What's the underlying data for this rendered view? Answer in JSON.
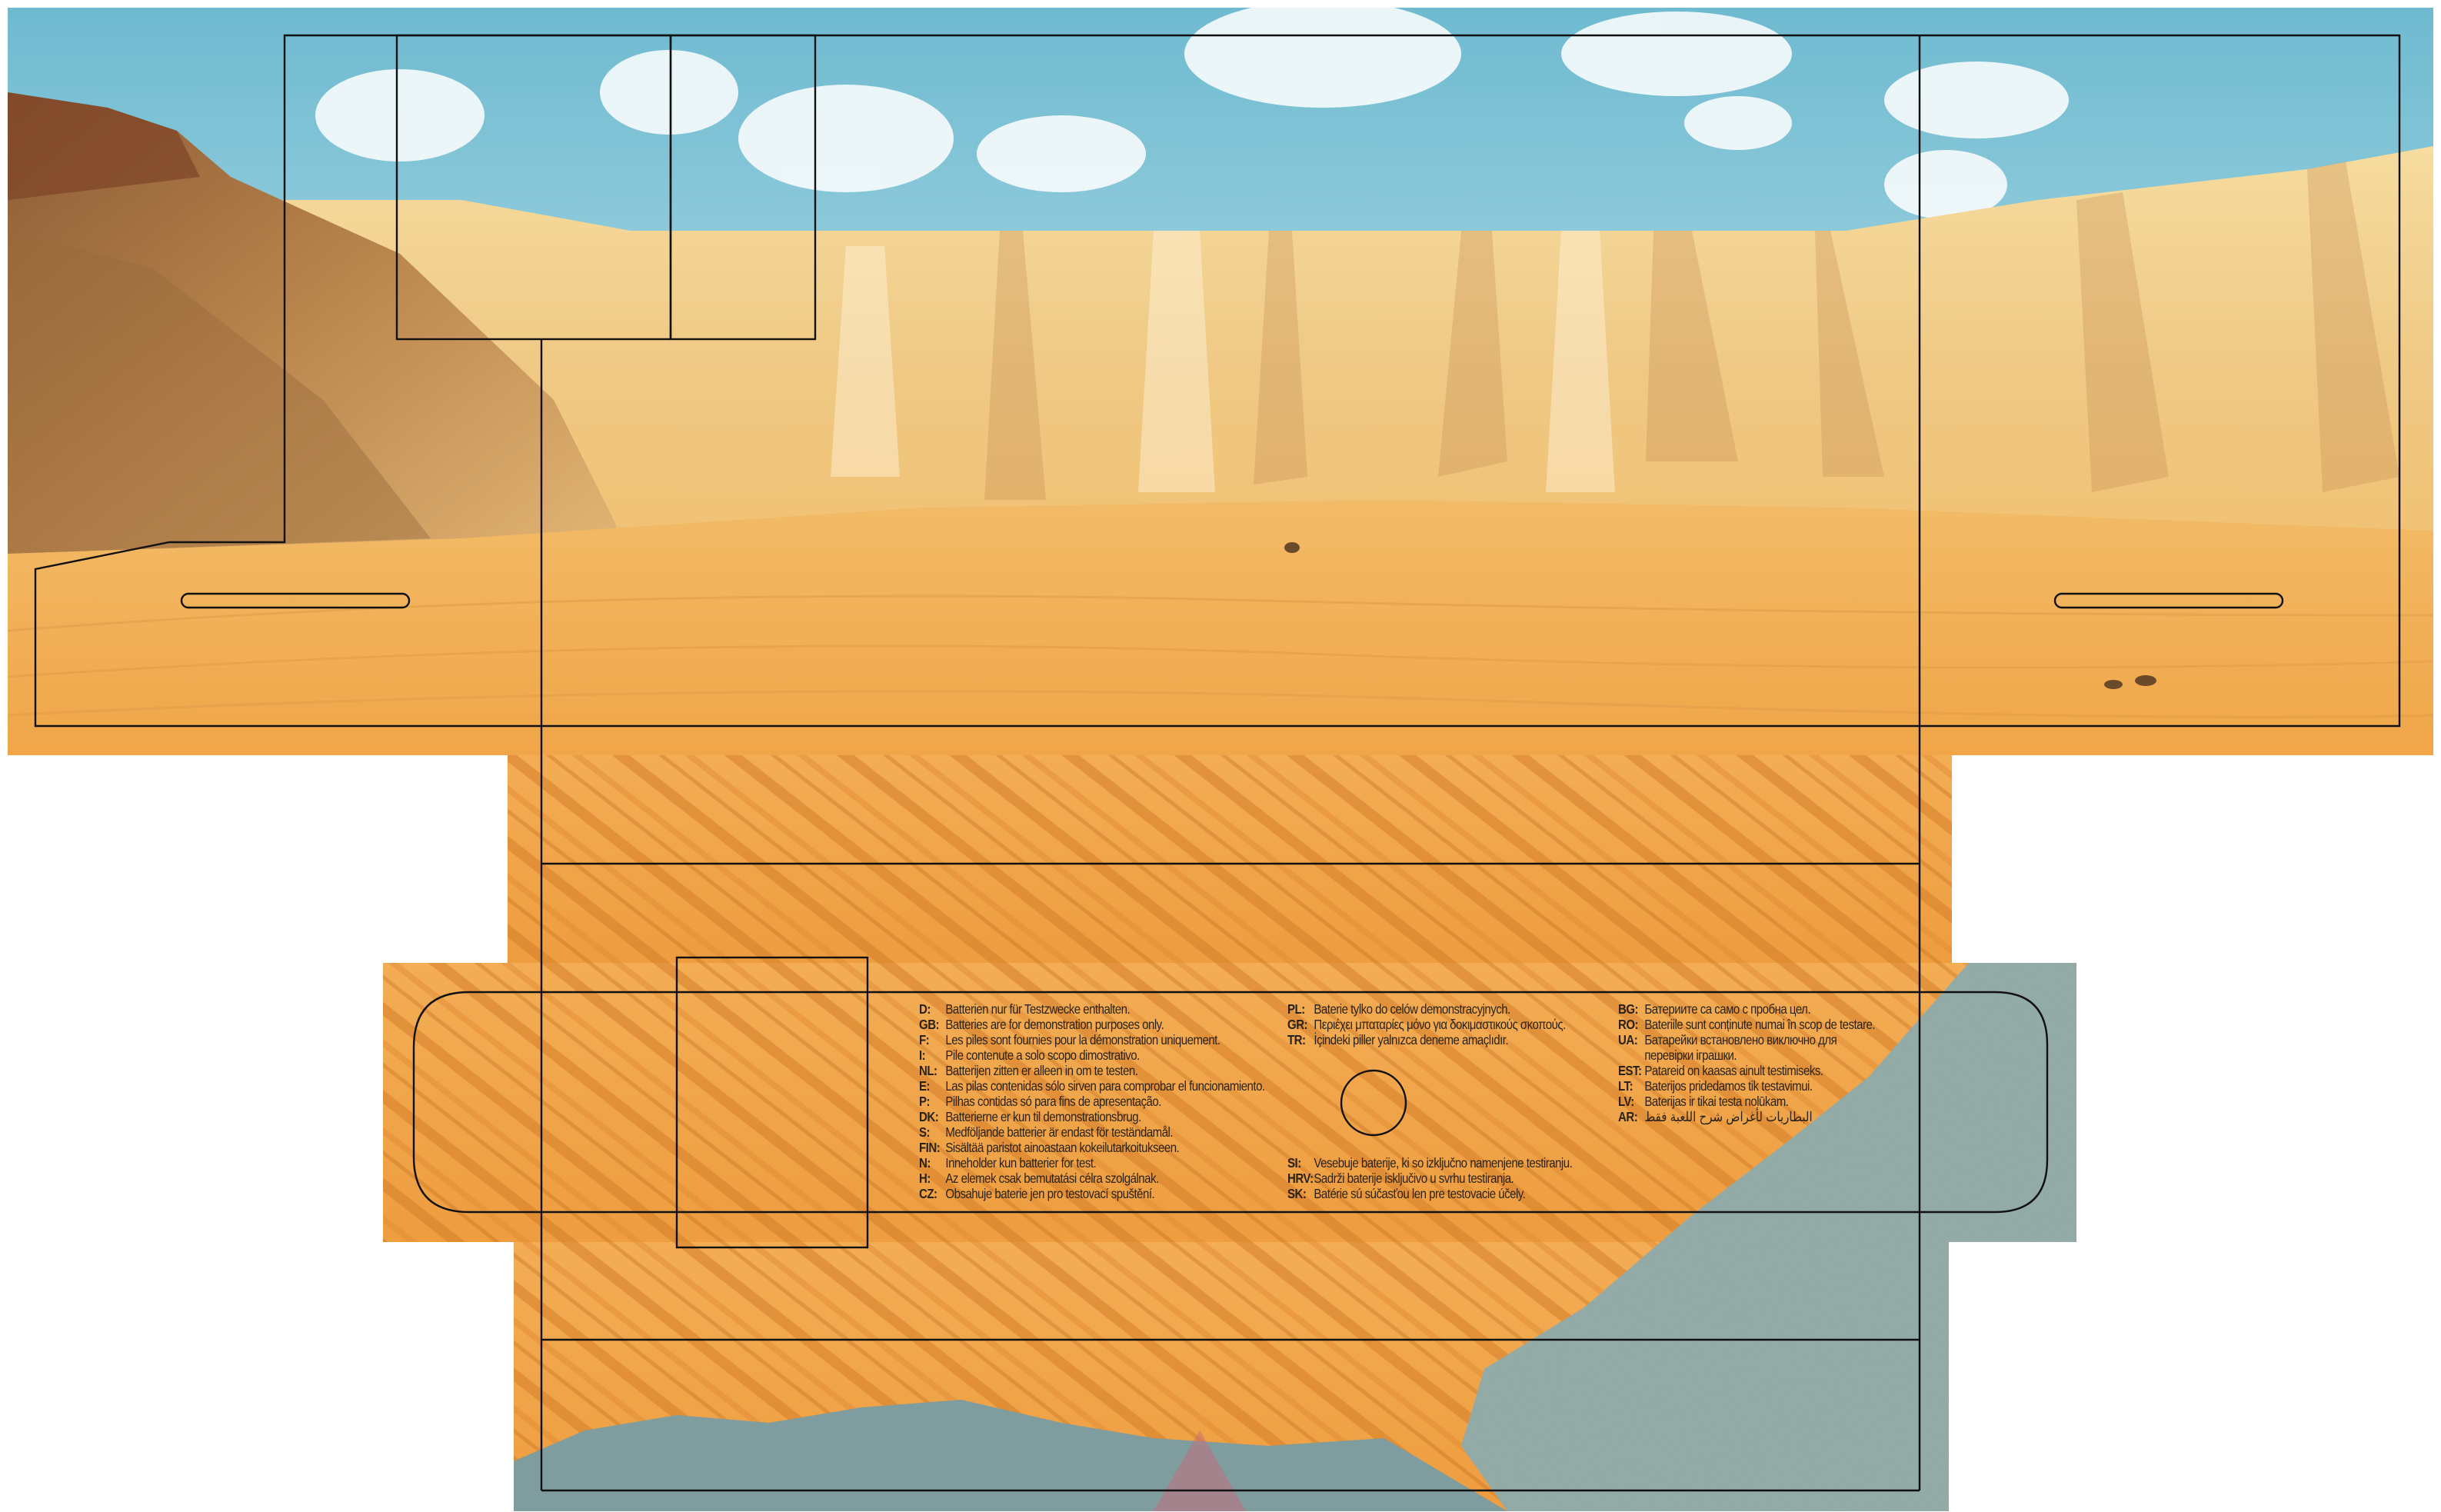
{
  "colors": {
    "sky_top": "#7fc3d6",
    "sky_bottom": "#d9eef2",
    "cliff_light": "#f2cf8c",
    "cliff_dark": "#b0743a",
    "sand": "#f0a347",
    "sand_stripe": "#d9822c",
    "gravel": "#86a3a0",
    "cut_line": "#111111"
  },
  "disclaimer": {
    "column_1": [
      {
        "code": "D:",
        "text": "Batterien nur für Testzwecke enthalten."
      },
      {
        "code": "GB:",
        "text": "Batteries are for demonstration purposes only."
      },
      {
        "code": "F:",
        "text": "Les piles sont fournies pour la démonstration uniquement."
      },
      {
        "code": "I:",
        "text": "Pile contenute a solo scopo dimostrativo."
      },
      {
        "code": "NL:",
        "text": "Batterijen zitten er alleen in om te testen."
      },
      {
        "code": "E:",
        "text": "Las pilas contenidas sólo sirven para comprobar el funcionamiento."
      },
      {
        "code": "P:",
        "text": "Pilhas contidas só para fins de apresentação."
      },
      {
        "code": "DK:",
        "text": "Batterierne er kun til demonstrationsbrug."
      },
      {
        "code": "S:",
        "text": "Medföljande batterier är endast för teständamål."
      },
      {
        "code": "FIN:",
        "text": "Sisältää paristot ainoastaan kokeilutarkoitukseen."
      },
      {
        "code": "N:",
        "text": "Inneholder kun batterier for test."
      },
      {
        "code": "H:",
        "text": "Az elemek csak bemutatási célra szolgálnak."
      },
      {
        "code": "CZ:",
        "text": "Obsahuje baterie jen pro testovací spuštění."
      }
    ],
    "column_2_top": [
      {
        "code": "PL:",
        "text": "Baterie tylko do celów demonstracyjnych."
      },
      {
        "code": "GR:",
        "text": "Περιέχει μπαταρίες μόνο για δοκιμαστικούς σκοπούς."
      },
      {
        "code": "TR:",
        "text": "İçindeki piller yalnızca deneme amaçlıdır."
      }
    ],
    "column_2_bottom": [
      {
        "code": "SI:",
        "text": "Vesebuje baterije, ki so izključno namenjene testiranju."
      },
      {
        "code": "HRV:",
        "text": "Sadrži baterije isključivo u svrhu testiranja."
      },
      {
        "code": "SK:",
        "text": "Batérie sú súčasťou len pre testovacie účely."
      }
    ],
    "column_3": [
      {
        "code": "BG:",
        "text": "Батериите са само с пробна цел."
      },
      {
        "code": "RO:",
        "text": "Bateriile sunt conținute numai în scop de testare."
      },
      {
        "code": "UA:",
        "text": "Батарейки встановлено виключно для перевірки іграшки."
      },
      {
        "code": "EST:",
        "text": "Patareid on kaasas ainult testimiseks."
      },
      {
        "code": "LT:",
        "text": "Baterijos pridedamos tik testavimui."
      },
      {
        "code": "LV:",
        "text": "Baterijas ir tikai testa nolūkam."
      },
      {
        "code": "AR:",
        "text": "البطاريات لأغراض شرح اللعبة فقط"
      }
    ]
  }
}
